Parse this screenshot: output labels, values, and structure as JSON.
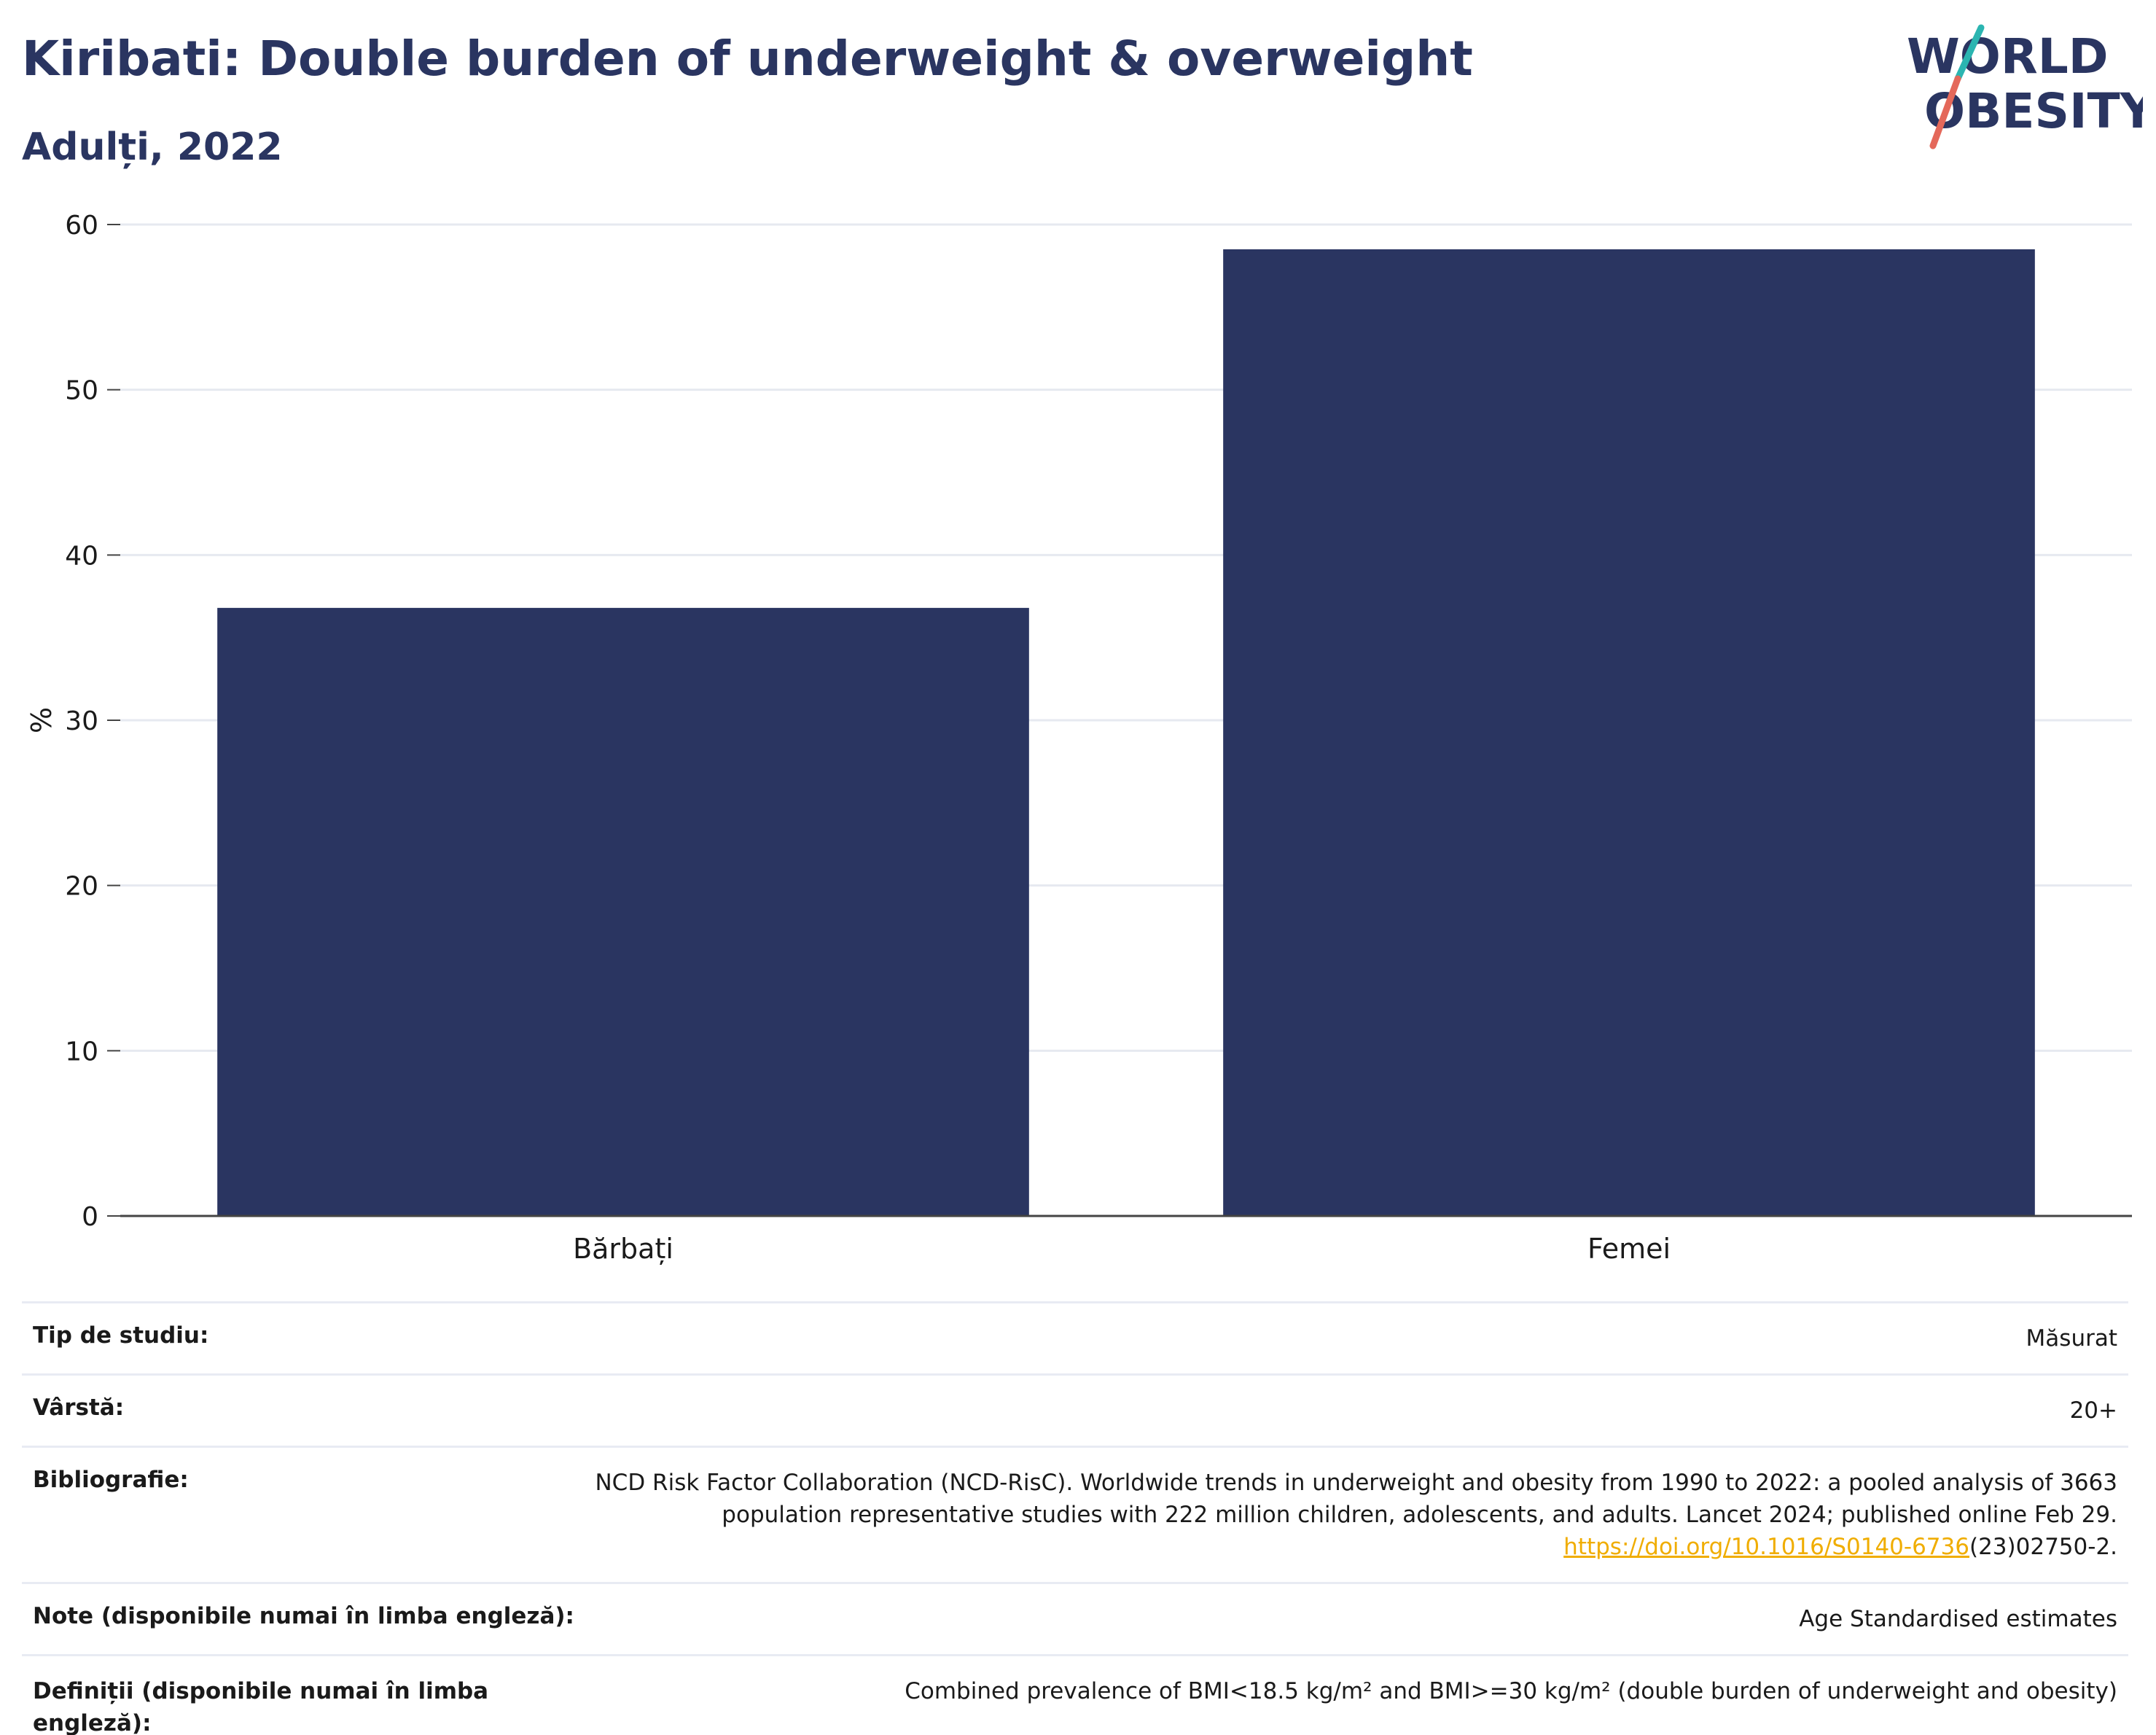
{
  "header": {
    "title": "Kiribati: Double burden of underweight & overweight",
    "subtitle": "Adulți, 2022"
  },
  "logo": {
    "line1": "WORLD",
    "line2": "OBESITY",
    "colors": {
      "navy": "#2a3561",
      "teal": "#2bb5b1",
      "coral": "#e4685a"
    }
  },
  "chart_data": {
    "type": "bar",
    "categories": [
      "Bărbați",
      "Femei"
    ],
    "values": [
      36.8,
      58.5
    ],
    "ylabel": "%",
    "xlabel": "",
    "ylim": [
      0,
      60
    ],
    "yticks": [
      0,
      10,
      20,
      30,
      40,
      50,
      60
    ],
    "grid": true,
    "bar_color": "#2a3561"
  },
  "info": {
    "study_type": {
      "label": "Tip de studiu:",
      "value": "Măsurat"
    },
    "age": {
      "label": "Vârstă:",
      "value": "20+"
    },
    "bibliography": {
      "label": "Bibliografie:",
      "text": "NCD Risk Factor Collaboration (NCD-RisC). Worldwide trends in underweight and obesity from 1990 to 2022: a pooled analysis of 3663 population representative studies with 222 million children, adolescents, and adults. Lancet 2024; published online Feb 29.",
      "link": "https://doi.org/10.1016/S0140-6736",
      "suffix": "(23)02750-2."
    },
    "notes": {
      "label": "Note (disponibile numai în limba engleză):",
      "value": "Age Standardised estimates"
    },
    "definitions": {
      "label": "Definiții (disponibile numai în limba engleză):",
      "value": "Combined prevalence of BMI<18.5 kg/m² and BMI>=30 kg/m² (double burden of underweight and obesity)"
    }
  }
}
